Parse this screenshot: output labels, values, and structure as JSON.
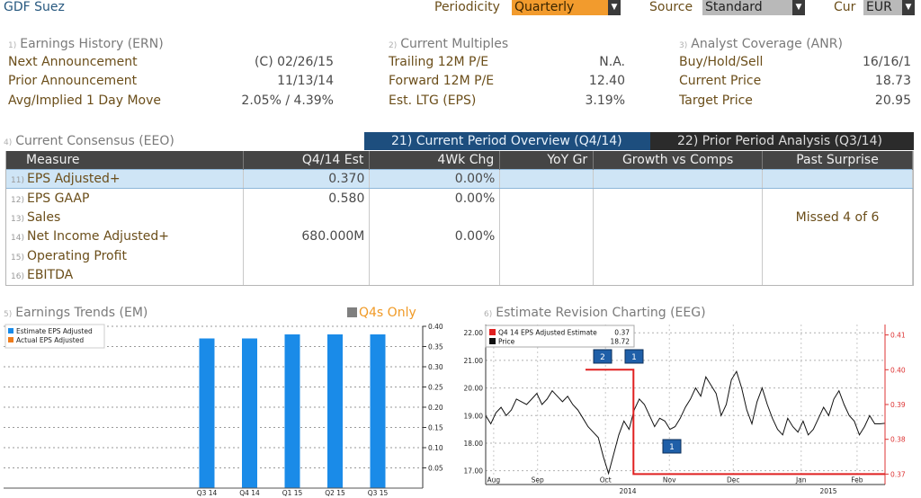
{
  "header": {
    "security": "GDF Suez",
    "periodicity_label": "Periodicity",
    "periodicity_value": "Quarterly",
    "source_label": "Source",
    "source_value": "Standard",
    "cur_label": "Cur",
    "cur_value": "EUR"
  },
  "earnings_history": {
    "number": "1)",
    "title": "Earnings History (ERN)",
    "rows": [
      {
        "label": "Next Announcement",
        "value": "(C)  02/26/15"
      },
      {
        "label": "Prior Announcement",
        "value": "11/13/14"
      },
      {
        "label": "Avg/Implied 1 Day Move",
        "value": "2.05% / 4.39%"
      }
    ]
  },
  "current_multiples": {
    "number": "2)",
    "title": "Current Multiples",
    "rows": [
      {
        "label": "Trailing 12M P/E",
        "value": "N.A."
      },
      {
        "label": "Forward 12M P/E",
        "value": "12.40"
      },
      {
        "label": "Est. LTG (EPS)",
        "value": "3.19%"
      }
    ]
  },
  "analyst_coverage": {
    "number": "3)",
    "title": "Analyst Coverage (ANR)",
    "rows": [
      {
        "label": "Buy/Hold/Sell",
        "value": "16/16/1"
      },
      {
        "label": "Current Price",
        "value": "18.73"
      },
      {
        "label": "Target Price",
        "value": "20.95"
      }
    ]
  },
  "consensus": {
    "number": "4)",
    "title": "Current Consensus (EEO)",
    "tab_current": "21) Current Period Overview (Q4/14)",
    "tab_prior": "22) Prior Period Analysis (Q3/14)",
    "columns": [
      "Measure",
      "Q4/14 Est",
      "4Wk Chg",
      "YoY Gr",
      "Growth vs Comps",
      "Past Surprise"
    ],
    "rows": [
      {
        "n": "11)",
        "measure": "EPS Adjusted+",
        "est": "0.370",
        "chg": "0.00%",
        "yoy": "",
        "comps": "",
        "surprise": ""
      },
      {
        "n": "12)",
        "measure": "EPS GAAP",
        "est": "0.580",
        "chg": "0.00%",
        "yoy": "",
        "comps": "",
        "surprise": ""
      },
      {
        "n": "13)",
        "measure": "Sales",
        "est": "",
        "chg": "",
        "yoy": "",
        "comps": "",
        "surprise": "Missed 4 of 6"
      },
      {
        "n": "14)",
        "measure": "Net Income Adjusted+",
        "est": "680.000M",
        "chg": "0.00%",
        "yoy": "",
        "comps": "",
        "surprise": ""
      },
      {
        "n": "15)",
        "measure": "Operating Profit",
        "est": "",
        "chg": "",
        "yoy": "",
        "comps": "",
        "surprise": ""
      },
      {
        "n": "16)",
        "measure": "EBITDA",
        "est": "",
        "chg": "",
        "yoy": "",
        "comps": "",
        "surprise": ""
      }
    ]
  },
  "earnings_trends": {
    "number": "5)",
    "title": "Earnings Trends (EM)",
    "toggle_label": "Q4s Only",
    "legend": [
      "Estimate EPS Adjusted",
      "Actual EPS Adjusted"
    ],
    "colors": {
      "estimate": "#1a8be8",
      "actual": "#ef7c1b"
    }
  },
  "estimate_revision": {
    "number": "6)",
    "title": "Estimate Revision Charting (EEG)",
    "legend": [
      {
        "name": "Q4 14 EPS Adjusted Estimate",
        "value": "0.37",
        "color": "#e02020"
      },
      {
        "name": "Price",
        "value": "18.72",
        "color": "#111111"
      }
    ],
    "markers": [
      "2",
      "1",
      "1"
    ],
    "year_labels": [
      "2014",
      "2015"
    ]
  },
  "chart_data": [
    {
      "type": "bar",
      "categories": [
        "Q3 14",
        "Q4 14",
        "Q1 15",
        "Q2 15",
        "Q3 15"
      ],
      "series": [
        {
          "name": "Estimate EPS Adjusted",
          "values": [
            0.37,
            0.37,
            0.38,
            0.38,
            0.38
          ]
        }
      ],
      "ylim": [
        0,
        0.4
      ],
      "yticks": [
        "0.05",
        "0.10",
        "0.15",
        "0.20",
        "0.25",
        "0.30",
        "0.35",
        "0.40"
      ],
      "grid": true
    },
    {
      "type": "line",
      "x_labels": [
        "Aug",
        "Sep",
        "Oct",
        "Nov",
        "Dec",
        "Jan",
        "Feb"
      ],
      "left_ticks": [
        "17.00",
        "18.00",
        "19.00",
        "20.00",
        "21.00",
        "22.00"
      ],
      "right_ticks": [
        "0.37",
        "0.38",
        "0.39",
        "0.40",
        "0.41"
      ],
      "left_ylim": [
        16.5,
        22.3
      ],
      "right_ylim": [
        0.367,
        0.413
      ],
      "estimate_steps": [
        {
          "x": 0.25,
          "y": 0.4
        },
        {
          "x": 0.37,
          "y": 0.4
        },
        {
          "x": 0.37,
          "y": 0.37
        },
        {
          "x": 1.0,
          "y": 0.37
        }
      ],
      "price": [
        19.0,
        18.7,
        19.1,
        19.3,
        19.0,
        19.2,
        19.6,
        19.5,
        19.4,
        19.6,
        19.8,
        19.4,
        19.6,
        19.9,
        19.7,
        19.5,
        19.7,
        19.4,
        19.2,
        18.9,
        18.6,
        18.4,
        18.2,
        17.5,
        16.9,
        17.6,
        18.3,
        18.8,
        18.5,
        19.2,
        19.6,
        19.4,
        19.0,
        18.6,
        18.9,
        18.8,
        18.5,
        18.6,
        18.9,
        19.3,
        19.6,
        20.0,
        19.7,
        20.4,
        20.1,
        19.8,
        19.0,
        19.4,
        20.3,
        20.6,
        20.0,
        19.2,
        18.7,
        19.5,
        20.0,
        19.4,
        18.9,
        18.5,
        18.3,
        18.9,
        18.6,
        18.4,
        18.8,
        18.3,
        18.5,
        18.9,
        19.3,
        19.0,
        19.6,
        19.9,
        19.4,
        19.0,
        18.8,
        18.3,
        18.6,
        19.0,
        18.7,
        18.7,
        18.72
      ]
    }
  ]
}
